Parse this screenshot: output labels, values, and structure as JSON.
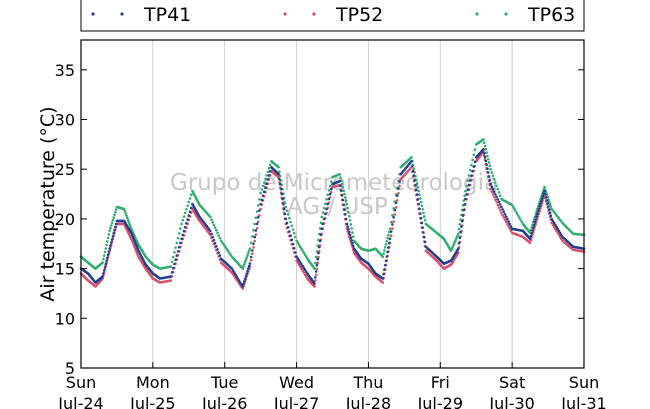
{
  "chart_data": {
    "type": "scatter",
    "title": "",
    "ylabel": "Air temperature (°C)",
    "xlabel": "",
    "ylim": [
      5,
      38
    ],
    "yticks": [
      5,
      10,
      15,
      20,
      25,
      30,
      35
    ],
    "x_unit": "days",
    "xlim": [
      0,
      7
    ],
    "xticks": [
      {
        "day": "Sun",
        "date": "Jul-24"
      },
      {
        "day": "Mon",
        "date": "Jul-25"
      },
      {
        "day": "Tue",
        "date": "Jul-26"
      },
      {
        "day": "Wed",
        "date": "Jul-27"
      },
      {
        "day": "Thu",
        "date": "Jul-28"
      },
      {
        "day": "Fri",
        "date": "Jul-29"
      },
      {
        "day": "Sat",
        "date": "Jul-30"
      },
      {
        "day": "Sun",
        "date": "Jul-31"
      }
    ],
    "grid": {
      "vertical": true,
      "horizontal": false
    },
    "legend_position": "top",
    "watermark": [
      "Grupo de Micrometeorologia",
      "IAG / USP"
    ],
    "series": [
      {
        "name": "TP41",
        "color": "#1f3f8f",
        "points": [
          [
            0,
            15.0
          ],
          [
            0.1,
            14.5
          ],
          [
            0.2,
            13.6
          ],
          [
            0.3,
            14.2
          ],
          [
            0.4,
            17.0
          ],
          [
            0.5,
            19.8
          ],
          [
            0.6,
            19.8
          ],
          [
            0.7,
            18.6
          ],
          [
            0.8,
            16.8
          ],
          [
            0.9,
            15.4
          ],
          [
            1.0,
            14.5
          ],
          [
            1.1,
            14.0
          ],
          [
            1.25,
            14.2
          ],
          [
            1.4,
            18.0
          ],
          [
            1.55,
            21.5
          ],
          [
            1.65,
            20.2
          ],
          [
            1.8,
            18.8
          ],
          [
            1.95,
            16.0
          ],
          [
            2.1,
            15.0
          ],
          [
            2.25,
            13.2
          ],
          [
            2.35,
            15.5
          ],
          [
            2.5,
            21.5
          ],
          [
            2.65,
            25.2
          ],
          [
            2.75,
            24.5
          ],
          [
            2.85,
            20.0
          ],
          [
            3.0,
            16.2
          ],
          [
            3.15,
            14.5
          ],
          [
            3.25,
            13.5
          ],
          [
            3.35,
            19.0
          ],
          [
            3.5,
            23.5
          ],
          [
            3.6,
            23.8
          ],
          [
            3.7,
            19.5
          ],
          [
            3.8,
            17.0
          ],
          [
            3.9,
            16.0
          ],
          [
            4.0,
            15.5
          ],
          [
            4.1,
            14.5
          ],
          [
            4.2,
            14.0
          ],
          [
            4.3,
            18.0
          ],
          [
            4.45,
            24.5
          ],
          [
            4.6,
            25.8
          ],
          [
            4.7,
            21.5
          ],
          [
            4.8,
            17.2
          ],
          [
            4.95,
            16.2
          ],
          [
            5.05,
            15.5
          ],
          [
            5.15,
            15.8
          ],
          [
            5.25,
            17.0
          ],
          [
            5.35,
            22.0
          ],
          [
            5.5,
            26.2
          ],
          [
            5.6,
            27.0
          ],
          [
            5.7,
            23.5
          ],
          [
            5.85,
            21.2
          ],
          [
            6.0,
            19.0
          ],
          [
            6.15,
            18.8
          ],
          [
            6.25,
            18.0
          ],
          [
            6.35,
            20.5
          ],
          [
            6.45,
            22.8
          ],
          [
            6.55,
            20.0
          ],
          [
            6.7,
            18.2
          ],
          [
            6.85,
            17.2
          ],
          [
            7.0,
            17.0
          ]
        ]
      },
      {
        "name": "TP52",
        "color": "#d94f6a",
        "points": [
          [
            0,
            14.5
          ],
          [
            0.1,
            13.8
          ],
          [
            0.2,
            13.2
          ],
          [
            0.3,
            14.0
          ],
          [
            0.4,
            16.8
          ],
          [
            0.5,
            19.5
          ],
          [
            0.6,
            19.5
          ],
          [
            0.7,
            18.0
          ],
          [
            0.8,
            16.2
          ],
          [
            0.9,
            15.0
          ],
          [
            1.0,
            14.0
          ],
          [
            1.1,
            13.6
          ],
          [
            1.25,
            13.8
          ],
          [
            1.4,
            17.6
          ],
          [
            1.55,
            21.0
          ],
          [
            1.65,
            19.8
          ],
          [
            1.8,
            18.4
          ],
          [
            1.95,
            15.6
          ],
          [
            2.1,
            14.6
          ],
          [
            2.25,
            13.0
          ],
          [
            2.35,
            15.2
          ],
          [
            2.5,
            21.0
          ],
          [
            2.65,
            24.8
          ],
          [
            2.75,
            24.2
          ],
          [
            2.85,
            19.5
          ],
          [
            3.0,
            15.8
          ],
          [
            3.15,
            14.0
          ],
          [
            3.25,
            13.2
          ],
          [
            3.35,
            18.5
          ],
          [
            3.5,
            23.2
          ],
          [
            3.6,
            23.4
          ],
          [
            3.7,
            19.0
          ],
          [
            3.8,
            16.6
          ],
          [
            3.9,
            15.6
          ],
          [
            4.0,
            15.0
          ],
          [
            4.1,
            14.2
          ],
          [
            4.2,
            13.6
          ],
          [
            4.3,
            17.6
          ],
          [
            4.45,
            24.0
          ],
          [
            4.6,
            25.2
          ],
          [
            4.7,
            21.0
          ],
          [
            4.8,
            16.8
          ],
          [
            4.95,
            15.8
          ],
          [
            5.05,
            15.0
          ],
          [
            5.15,
            15.4
          ],
          [
            5.25,
            16.6
          ],
          [
            5.35,
            21.5
          ],
          [
            5.5,
            25.8
          ],
          [
            5.6,
            26.8
          ],
          [
            5.7,
            23.0
          ],
          [
            5.85,
            20.6
          ],
          [
            6.0,
            18.6
          ],
          [
            6.15,
            18.2
          ],
          [
            6.25,
            17.6
          ],
          [
            6.35,
            20.0
          ],
          [
            6.45,
            22.4
          ],
          [
            6.55,
            19.6
          ],
          [
            6.7,
            17.8
          ],
          [
            6.85,
            16.9
          ],
          [
            7.0,
            16.7
          ]
        ]
      },
      {
        "name": "TP63",
        "color": "#2fae6e",
        "points": [
          [
            0,
            16.2
          ],
          [
            0.1,
            15.6
          ],
          [
            0.2,
            15.0
          ],
          [
            0.3,
            15.6
          ],
          [
            0.4,
            18.8
          ],
          [
            0.5,
            21.2
          ],
          [
            0.6,
            21.0
          ],
          [
            0.7,
            19.0
          ],
          [
            0.8,
            17.4
          ],
          [
            0.9,
            16.2
          ],
          [
            1.0,
            15.4
          ],
          [
            1.1,
            15.0
          ],
          [
            1.25,
            15.2
          ],
          [
            1.4,
            19.5
          ],
          [
            1.55,
            22.8
          ],
          [
            1.65,
            21.4
          ],
          [
            1.8,
            20.2
          ],
          [
            1.95,
            17.8
          ],
          [
            2.1,
            16.2
          ],
          [
            2.25,
            15.0
          ],
          [
            2.35,
            17.0
          ],
          [
            2.5,
            22.6
          ],
          [
            2.65,
            25.8
          ],
          [
            2.75,
            25.2
          ],
          [
            2.85,
            21.2
          ],
          [
            3.0,
            17.8
          ],
          [
            3.15,
            16.0
          ],
          [
            3.25,
            15.0
          ],
          [
            3.35,
            20.2
          ],
          [
            3.5,
            24.2
          ],
          [
            3.6,
            24.5
          ],
          [
            3.7,
            21.5
          ],
          [
            3.8,
            17.8
          ],
          [
            3.9,
            17.0
          ],
          [
            4.0,
            16.8
          ],
          [
            4.1,
            17.0
          ],
          [
            4.2,
            16.2
          ],
          [
            4.3,
            19.0
          ],
          [
            4.45,
            25.2
          ],
          [
            4.6,
            26.2
          ],
          [
            4.7,
            22.8
          ],
          [
            4.8,
            19.5
          ],
          [
            4.95,
            18.6
          ],
          [
            5.05,
            18.0
          ],
          [
            5.15,
            16.8
          ],
          [
            5.25,
            18.5
          ],
          [
            5.35,
            22.8
          ],
          [
            5.5,
            27.5
          ],
          [
            5.6,
            28.0
          ],
          [
            5.7,
            25.0
          ],
          [
            5.85,
            22.0
          ],
          [
            6.0,
            21.4
          ],
          [
            6.15,
            19.5
          ],
          [
            6.25,
            18.6
          ],
          [
            6.35,
            21.0
          ],
          [
            6.45,
            23.2
          ],
          [
            6.55,
            21.0
          ],
          [
            6.7,
            19.6
          ],
          [
            6.85,
            18.5
          ],
          [
            7.0,
            18.4
          ]
        ]
      }
    ]
  }
}
